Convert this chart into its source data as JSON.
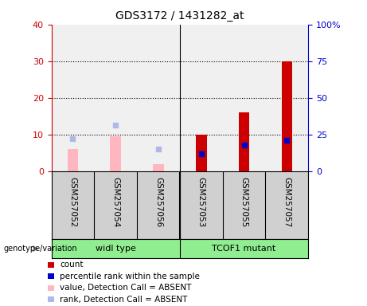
{
  "title": "GDS3172 / 1431282_at",
  "samples": [
    "GSM257052",
    "GSM257054",
    "GSM257056",
    "GSM257053",
    "GSM257055",
    "GSM257057"
  ],
  "group_names": [
    "widl type",
    "TCOF1 mutant"
  ],
  "group_color": "#90ee90",
  "pink_bars": [
    6.0,
    9.5,
    2.0,
    null,
    null,
    null
  ],
  "light_blue_squares": [
    9.0,
    12.5,
    6.0,
    null,
    null,
    null
  ],
  "red_bars": [
    null,
    null,
    null,
    10.0,
    16.0,
    30.0
  ],
  "blue_squares": [
    null,
    null,
    null,
    12.0,
    18.0,
    21.0
  ],
  "ylim_left": [
    0,
    40
  ],
  "ylim_right": [
    0,
    100
  ],
  "yticks_left": [
    0,
    10,
    20,
    30,
    40
  ],
  "yticks_right": [
    0,
    25,
    50,
    75,
    100
  ],
  "ytick_labels_right": [
    "0",
    "25",
    "50",
    "75",
    "100%"
  ],
  "left_axis_color": "#cc0000",
  "right_axis_color": "#0000cc",
  "pink_color": "#ffb6c1",
  "light_blue_color": "#b0b8e8",
  "red_color": "#cc0000",
  "blue_color": "#0000cc",
  "bg_plot": "#f0f0f0",
  "bg_sample": "#d0d0d0",
  "legend_items": [
    {
      "color": "#cc0000",
      "label": "count"
    },
    {
      "color": "#0000cc",
      "label": "percentile rank within the sample"
    },
    {
      "color": "#ffb6c1",
      "label": "value, Detection Call = ABSENT"
    },
    {
      "color": "#b0b8e8",
      "label": "rank, Detection Call = ABSENT"
    }
  ]
}
